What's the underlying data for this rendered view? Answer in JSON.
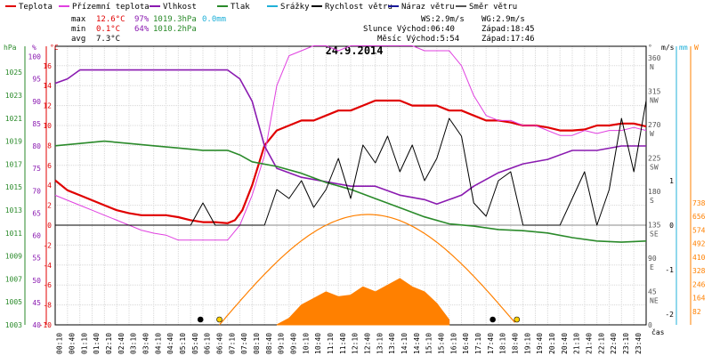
{
  "legend": {
    "items": [
      {
        "label": "Teplota",
        "color": "#e00000"
      },
      {
        "label": "Přízemní teplota",
        "color": "#e040e0"
      },
      {
        "label": "Vlhkost",
        "color": "#8a1ab0"
      },
      {
        "label": "Tlak",
        "color": "#2a8a2a"
      },
      {
        "label": "Srážky",
        "color": "#20b0d8"
      },
      {
        "label": "Rychlost větru",
        "color": "#000000"
      },
      {
        "label": "Náraz větru",
        "color": "#1a1a9a"
      },
      {
        "label": "Směr větru",
        "color": "#555555"
      }
    ]
  },
  "stats": {
    "max_label": "max",
    "min_label": "min",
    "avg_label": "avg",
    "max_temp": "12.6°C",
    "max_hum": "97%",
    "max_press": "1019.3hPa",
    "max_rain": "0.0mm",
    "min_temp": "0.1°C",
    "min_hum": "64%",
    "min_press": "1010.2hPa",
    "avg_temp": "7.3°C"
  },
  "wind_info": {
    "ws": "WS:2.9m/s",
    "wg": "WG:2.9m/s"
  },
  "sun": {
    "sunrise": "Slunce Východ:06:40",
    "sunset": "Západ:18:45"
  },
  "moon": {
    "moonrise": "Měsíc Východ:5:54",
    "moonset": "Západ:17:46"
  },
  "title": "24.9.2014",
  "axes": {
    "hpa_unit": "hPa",
    "pct_unit": "%",
    "c_unit": "°C",
    "deg_unit": "°",
    "ms_unit": "m/s",
    "mm_unit": "mm",
    "w_unit": "W",
    "time_unit": "čas",
    "hpa_ticks": [
      "1025",
      "1023",
      "1021",
      "1019",
      "1017",
      "1015",
      "1013",
      "1011",
      "1009",
      "1007",
      "1005",
      "1003"
    ],
    "pct_ticks": [
      "100",
      "95",
      "90",
      "85",
      "80",
      "75",
      "70",
      "65",
      "60",
      "55",
      "50",
      "45",
      "40"
    ],
    "c_ticks": [
      "16",
      "14",
      "12",
      "10",
      "8",
      "6",
      "4",
      "2",
      "0",
      "-2",
      "-4",
      "-6",
      "-8",
      "-10"
    ],
    "deg_ticks": [
      "360",
      "315",
      "270",
      "225",
      "180",
      "135",
      "90",
      "45",
      "0"
    ],
    "dir_ticks": [
      "N",
      "NW",
      "W",
      "SW",
      "S",
      "SE",
      "E",
      "NE"
    ],
    "ms_ticks": [
      "1",
      "0",
      "-1",
      "-2",
      "-3"
    ],
    "w_ticks": [
      "738",
      "656",
      "574",
      "492",
      "410",
      "328",
      "246",
      "164",
      "82"
    ],
    "x_ticks": [
      "00:10",
      "00:40",
      "01:10",
      "01:40",
      "02:10",
      "02:40",
      "03:10",
      "03:40",
      "04:10",
      "04:40",
      "05:10",
      "05:40",
      "06:10",
      "06:40",
      "07:10",
      "07:40",
      "08:10",
      "08:40",
      "09:10",
      "09:40",
      "10:10",
      "10:40",
      "11:10",
      "11:40",
      "12:10",
      "12:40",
      "13:10",
      "13:40",
      "14:10",
      "14:40",
      "15:10",
      "15:40",
      "16:10",
      "16:40",
      "17:10",
      "17:40",
      "18:10",
      "18:40",
      "19:10",
      "19:40",
      "20:10",
      "20:40",
      "21:10",
      "21:40",
      "22:10",
      "22:40",
      "23:10",
      "23:40"
    ]
  },
  "chart_data": {
    "type": "line",
    "title": "24.9.2014",
    "x_unit": "hours",
    "series": [
      {
        "name": "Teplota",
        "color": "#e00000",
        "axis": "°C",
        "x": [
          0,
          0.5,
          1,
          1.5,
          2,
          2.5,
          3,
          3.5,
          4,
          4.5,
          5,
          5.5,
          6,
          6.5,
          7,
          7.3,
          7.6,
          8,
          8.5,
          9,
          9.5,
          10,
          10.5,
          11,
          11.5,
          12,
          12.5,
          13,
          13.5,
          14,
          14.5,
          15,
          15.5,
          16,
          16.5,
          17,
          17.5,
          18,
          18.5,
          19,
          19.5,
          20,
          20.5,
          21,
          21.5,
          22,
          22.5,
          23,
          23.5,
          24
        ],
        "y": [
          4.5,
          3.5,
          3.0,
          2.5,
          2.0,
          1.5,
          1.2,
          1.0,
          1.0,
          1.0,
          0.8,
          0.5,
          0.3,
          0.3,
          0.2,
          0.5,
          1.5,
          4.0,
          8.0,
          9.5,
          10.0,
          10.5,
          10.5,
          11.0,
          11.5,
          11.5,
          12.0,
          12.5,
          12.5,
          12.5,
          12.0,
          12.0,
          12.0,
          11.5,
          11.5,
          11.0,
          10.5,
          10.5,
          10.3,
          10.0,
          10.0,
          9.8,
          9.5,
          9.5,
          9.6,
          10.0,
          10.0,
          10.2,
          10.2,
          9.9
        ]
      },
      {
        "name": "Přízemní teplota",
        "color": "#e040e0",
        "axis": "°C",
        "x": [
          0,
          0.5,
          1,
          1.5,
          2,
          2.5,
          3,
          3.5,
          4,
          4.5,
          5,
          5.5,
          6,
          6.5,
          7,
          7.5,
          8,
          8.5,
          9,
          9.5,
          10,
          10.5,
          11,
          11.5,
          12,
          12.5,
          13,
          13.5,
          14,
          14.5,
          15,
          15.5,
          16,
          16.5,
          17,
          17.5,
          18,
          18.5,
          19,
          19.5,
          20,
          20.5,
          21,
          21.5,
          22,
          22.5,
          23,
          23.5,
          24
        ],
        "y": [
          3.0,
          2.5,
          2.0,
          1.5,
          1.0,
          0.5,
          0.0,
          -0.5,
          -0.8,
          -1.0,
          -1.5,
          -1.5,
          -1.5,
          -1.5,
          -1.5,
          0.0,
          3.0,
          7.0,
          14.0,
          17.0,
          17.5,
          18.0,
          18.0,
          17.5,
          18.0,
          18.0,
          18.0,
          18.0,
          18.0,
          18.0,
          17.5,
          17.5,
          17.5,
          16.0,
          13.0,
          11.0,
          10.5,
          10.5,
          10.0,
          10.0,
          9.5,
          9.0,
          9.0,
          9.5,
          9.2,
          9.5,
          9.5,
          9.8,
          9.5
        ]
      },
      {
        "name": "Vlhkost",
        "color": "#8a1ab0",
        "axis": "%",
        "x": [
          0,
          0.5,
          1,
          2,
          3,
          4,
          5,
          6,
          7,
          7.5,
          8,
          8.5,
          9,
          10,
          11,
          12,
          13,
          14,
          15,
          15.5,
          16,
          16.5,
          17,
          18,
          19,
          20,
          21,
          22,
          23,
          24
        ],
        "y": [
          94,
          95,
          97,
          97,
          97,
          97,
          97,
          97,
          97,
          95,
          90,
          80,
          75,
          73,
          72,
          71,
          71,
          69,
          68,
          67,
          68,
          69,
          71,
          74,
          76,
          77,
          79,
          79,
          80,
          80
        ]
      },
      {
        "name": "Tlak",
        "color": "#2a8a2a",
        "axis": "hPa",
        "x": [
          0,
          1,
          2,
          3,
          4,
          5,
          6,
          7,
          7.5,
          8,
          9,
          10,
          11,
          12,
          13,
          14,
          15,
          16,
          17,
          18,
          19,
          20,
          21,
          22,
          23,
          24
        ],
        "y": [
          1018.6,
          1018.8,
          1019.0,
          1018.8,
          1018.6,
          1018.4,
          1018.2,
          1018.2,
          1017.8,
          1017.2,
          1016.8,
          1016.2,
          1015.4,
          1014.8,
          1014.0,
          1013.2,
          1012.4,
          1011.8,
          1011.6,
          1011.3,
          1011.2,
          1011.0,
          1010.6,
          1010.3,
          1010.2,
          1010.3
        ]
      },
      {
        "name": "Rychlost větru",
        "color": "#000000",
        "axis": "m/s",
        "x": [
          0,
          5.5,
          6,
          6.5,
          7,
          7.5,
          8,
          8.5,
          9,
          9.5,
          10,
          10.5,
          11,
          11.5,
          12,
          12.5,
          13,
          13.5,
          14,
          14.5,
          15,
          15.5,
          16,
          16.5,
          17,
          17.5,
          18,
          18.5,
          19,
          19.5,
          20,
          20.5,
          21,
          21.5,
          22,
          22.5,
          23,
          23.5,
          24
        ],
        "y": [
          0,
          0,
          0.5,
          0,
          0,
          0,
          0,
          0,
          0.8,
          0.6,
          1.0,
          0.4,
          0.8,
          1.5,
          0.6,
          1.8,
          1.4,
          2.0,
          1.2,
          1.8,
          1.0,
          1.5,
          2.4,
          2.0,
          0.5,
          0.2,
          1.0,
          1.2,
          0,
          0,
          0,
          0,
          0.6,
          1.2,
          0,
          0.8,
          2.4,
          1.2,
          2.8
        ]
      },
      {
        "name": "Sluneční záření",
        "color": "#ff8000",
        "axis": "W",
        "x": [
          9,
          9.5,
          10,
          10.5,
          11,
          11.5,
          12,
          12.5,
          13,
          13.5,
          14,
          14.5,
          15,
          15.5,
          16
        ],
        "y": [
          0,
          40,
          120,
          160,
          200,
          170,
          180,
          230,
          200,
          240,
          280,
          230,
          200,
          130,
          30
        ]
      }
    ]
  }
}
